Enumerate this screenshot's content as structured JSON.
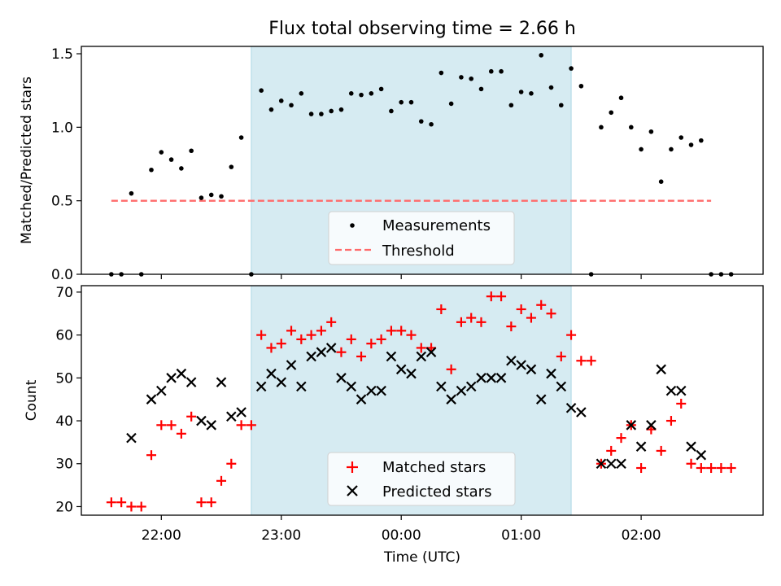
{
  "title": "Flux total observing time = 2.66 h",
  "colors": {
    "window": "#add8e6",
    "measurements": "#000000",
    "threshold": "#ff6b6b",
    "matched": "#ff0000",
    "predicted": "#000000"
  },
  "chart_data": [
    {
      "type": "scatter",
      "ylabel": "Matched/Predicted stars",
      "xlim": [
        "21:20",
        "03:01"
      ],
      "ylim": [
        0,
        1.55
      ],
      "yticks": [
        "0.0",
        "0.5",
        "1.0",
        "1.5"
      ],
      "shaded_window": [
        "22:45",
        "01:25"
      ],
      "legend": {
        "position": "bottom-center",
        "entries": [
          "Measurements",
          "Threshold"
        ]
      },
      "threshold": {
        "name": "Threshold",
        "value": 0.5,
        "x_range": [
          "21:35",
          "02:35"
        ]
      },
      "series": [
        {
          "name": "Measurements",
          "points": [
            [
              "21:35",
              0.0
            ],
            [
              "21:40",
              0.0
            ],
            [
              "21:45",
              0.55
            ],
            [
              "21:50",
              0.0
            ],
            [
              "21:55",
              0.71
            ],
            [
              "22:00",
              0.83
            ],
            [
              "22:05",
              0.78
            ],
            [
              "22:10",
              0.72
            ],
            [
              "22:15",
              0.84
            ],
            [
              "22:20",
              0.52
            ],
            [
              "22:25",
              0.54
            ],
            [
              "22:30",
              0.53
            ],
            [
              "22:35",
              0.73
            ],
            [
              "22:40",
              0.93
            ],
            [
              "22:45",
              0.0
            ],
            [
              "22:50",
              1.25
            ],
            [
              "22:55",
              1.12
            ],
            [
              "23:00",
              1.18
            ],
            [
              "23:05",
              1.15
            ],
            [
              "23:10",
              1.23
            ],
            [
              "23:15",
              1.09
            ],
            [
              "23:20",
              1.09
            ],
            [
              "23:25",
              1.11
            ],
            [
              "23:30",
              1.12
            ],
            [
              "23:35",
              1.23
            ],
            [
              "23:40",
              1.22
            ],
            [
              "23:45",
              1.23
            ],
            [
              "23:50",
              1.26
            ],
            [
              "23:55",
              1.11
            ],
            [
              "00:00",
              1.17
            ],
            [
              "00:05",
              1.17
            ],
            [
              "00:10",
              1.04
            ],
            [
              "00:15",
              1.02
            ],
            [
              "00:20",
              1.37
            ],
            [
              "00:25",
              1.16
            ],
            [
              "00:30",
              1.34
            ],
            [
              "00:35",
              1.33
            ],
            [
              "00:40",
              1.26
            ],
            [
              "00:45",
              1.38
            ],
            [
              "00:50",
              1.38
            ],
            [
              "00:55",
              1.15
            ],
            [
              "01:00",
              1.24
            ],
            [
              "01:05",
              1.23
            ],
            [
              "01:10",
              1.49
            ],
            [
              "01:15",
              1.27
            ],
            [
              "01:20",
              1.15
            ],
            [
              "01:25",
              1.4
            ],
            [
              "01:30",
              1.28
            ],
            [
              "01:35",
              0.0
            ],
            [
              "01:40",
              1.0
            ],
            [
              "01:45",
              1.1
            ],
            [
              "01:50",
              1.2
            ],
            [
              "01:55",
              1.0
            ],
            [
              "02:00",
              0.85
            ],
            [
              "02:05",
              0.97
            ],
            [
              "02:10",
              0.63
            ],
            [
              "02:15",
              0.85
            ],
            [
              "02:20",
              0.93
            ],
            [
              "02:25",
              0.88
            ],
            [
              "02:30",
              0.91
            ],
            [
              "02:35",
              0.0
            ],
            [
              "02:40",
              0.0
            ],
            [
              "02:45",
              0.0
            ]
          ]
        }
      ]
    },
    {
      "type": "scatter",
      "xlabel": "Time (UTC)",
      "ylabel": "Count",
      "xlim": [
        "21:20",
        "03:01"
      ],
      "ylim": [
        18,
        71.5
      ],
      "yticks": [
        "20",
        "30",
        "40",
        "50",
        "60",
        "70"
      ],
      "xticks": [
        "22:00",
        "23:00",
        "00:00",
        "01:00",
        "02:00"
      ],
      "shaded_window": [
        "22:45",
        "01:25"
      ],
      "legend": {
        "position": "bottom-center",
        "entries": [
          "Matched stars",
          "Predicted stars"
        ]
      },
      "series": [
        {
          "name": "Matched stars",
          "marker": "+",
          "points": [
            [
              "21:35",
              21
            ],
            [
              "21:40",
              21
            ],
            [
              "21:45",
              20
            ],
            [
              "21:50",
              20
            ],
            [
              "21:55",
              32
            ],
            [
              "22:00",
              39
            ],
            [
              "22:05",
              39
            ],
            [
              "22:10",
              37
            ],
            [
              "22:15",
              41
            ],
            [
              "22:20",
              21
            ],
            [
              "22:25",
              21
            ],
            [
              "22:30",
              26
            ],
            [
              "22:35",
              30
            ],
            [
              "22:40",
              39
            ],
            [
              "22:45",
              39
            ],
            [
              "22:50",
              60
            ],
            [
              "22:55",
              57
            ],
            [
              "23:00",
              58
            ],
            [
              "23:05",
              61
            ],
            [
              "23:10",
              59
            ],
            [
              "23:15",
              60
            ],
            [
              "23:20",
              61
            ],
            [
              "23:25",
              63
            ],
            [
              "23:30",
              56
            ],
            [
              "23:35",
              59
            ],
            [
              "23:40",
              55
            ],
            [
              "23:45",
              58
            ],
            [
              "23:50",
              59
            ],
            [
              "23:55",
              61
            ],
            [
              "00:00",
              61
            ],
            [
              "00:05",
              60
            ],
            [
              "00:10",
              57
            ],
            [
              "00:15",
              57
            ],
            [
              "00:20",
              66
            ],
            [
              "00:25",
              52
            ],
            [
              "00:30",
              63
            ],
            [
              "00:35",
              64
            ],
            [
              "00:40",
              63
            ],
            [
              "00:45",
              69
            ],
            [
              "00:50",
              69
            ],
            [
              "00:55",
              62
            ],
            [
              "01:00",
              66
            ],
            [
              "01:05",
              64
            ],
            [
              "01:10",
              67
            ],
            [
              "01:15",
              65
            ],
            [
              "01:20",
              55
            ],
            [
              "01:25",
              60
            ],
            [
              "01:30",
              54
            ],
            [
              "01:35",
              54
            ],
            [
              "01:40",
              30
            ],
            [
              "01:45",
              33
            ],
            [
              "01:50",
              36
            ],
            [
              "01:55",
              39
            ],
            [
              "02:00",
              29
            ],
            [
              "02:05",
              38
            ],
            [
              "02:10",
              33
            ],
            [
              "02:15",
              40
            ],
            [
              "02:20",
              44
            ],
            [
              "02:25",
              30
            ],
            [
              "02:30",
              29
            ],
            [
              "02:35",
              29
            ],
            [
              "02:40",
              29
            ],
            [
              "02:45",
              29
            ]
          ]
        },
        {
          "name": "Predicted stars",
          "marker": "x",
          "points": [
            [
              "21:45",
              36
            ],
            [
              "21:55",
              45
            ],
            [
              "22:00",
              47
            ],
            [
              "22:05",
              50
            ],
            [
              "22:10",
              51
            ],
            [
              "22:15",
              49
            ],
            [
              "22:20",
              40
            ],
            [
              "22:25",
              39
            ],
            [
              "22:30",
              49
            ],
            [
              "22:35",
              41
            ],
            [
              "22:40",
              42
            ],
            [
              "22:50",
              48
            ],
            [
              "22:55",
              51
            ],
            [
              "23:00",
              49
            ],
            [
              "23:05",
              53
            ],
            [
              "23:10",
              48
            ],
            [
              "23:15",
              55
            ],
            [
              "23:20",
              56
            ],
            [
              "23:25",
              57
            ],
            [
              "23:30",
              50
            ],
            [
              "23:35",
              48
            ],
            [
              "23:40",
              45
            ],
            [
              "23:45",
              47
            ],
            [
              "23:50",
              47
            ],
            [
              "23:55",
              55
            ],
            [
              "00:00",
              52
            ],
            [
              "00:05",
              51
            ],
            [
              "00:10",
              55
            ],
            [
              "00:15",
              56
            ],
            [
              "00:20",
              48
            ],
            [
              "00:25",
              45
            ],
            [
              "00:30",
              47
            ],
            [
              "00:35",
              48
            ],
            [
              "00:40",
              50
            ],
            [
              "00:45",
              50
            ],
            [
              "00:50",
              50
            ],
            [
              "00:55",
              54
            ],
            [
              "01:00",
              53
            ],
            [
              "01:05",
              52
            ],
            [
              "01:10",
              45
            ],
            [
              "01:15",
              51
            ],
            [
              "01:20",
              48
            ],
            [
              "01:25",
              43
            ],
            [
              "01:30",
              42
            ],
            [
              "01:40",
              30
            ],
            [
              "01:45",
              30
            ],
            [
              "01:50",
              30
            ],
            [
              "01:55",
              39
            ],
            [
              "02:00",
              34
            ],
            [
              "02:05",
              39
            ],
            [
              "02:10",
              52
            ],
            [
              "02:15",
              47
            ],
            [
              "02:20",
              47
            ],
            [
              "02:25",
              34
            ],
            [
              "02:30",
              32
            ]
          ]
        }
      ]
    }
  ]
}
